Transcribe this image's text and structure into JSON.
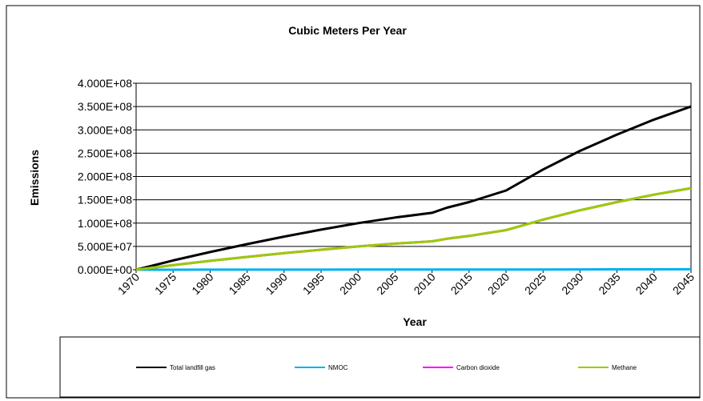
{
  "chart_data": {
    "type": "line",
    "title": "Cubic Meters Per Year",
    "xlabel": "Year",
    "ylabel": "Emissions",
    "ylim": [
      0,
      400000000
    ],
    "xlim": [
      1970,
      2045
    ],
    "y_ticks": [
      "0.000E+00",
      "5.000E+07",
      "1.000E+08",
      "1.500E+08",
      "2.000E+08",
      "2.500E+08",
      "3.000E+08",
      "3.500E+08",
      "4.000E+08"
    ],
    "x_ticks": [
      "1970",
      "1975",
      "1980",
      "1985",
      "1990",
      "1995",
      "2000",
      "2005",
      "2010",
      "2015",
      "2020",
      "2025",
      "2030",
      "2035",
      "2040",
      "2045"
    ],
    "grid": "horizontal",
    "legend": "bottom",
    "x": [
      1970,
      1975,
      1980,
      1985,
      1990,
      1995,
      2000,
      2005,
      2010,
      2012,
      2015,
      2020,
      2025,
      2030,
      2035,
      2040,
      2045
    ],
    "series": [
      {
        "name": "Total landfill gas",
        "color": "#000000",
        "values": [
          0,
          20000000,
          38000000,
          55000000,
          71000000,
          86000000,
          100000000,
          112000000,
          122000000,
          133000000,
          145000000,
          170000000,
          215000000,
          255000000,
          290000000,
          322000000,
          350000000
        ]
      },
      {
        "name": "NMOC",
        "color": "#00b0f0",
        "values": [
          0,
          50000,
          100000,
          150000,
          200000,
          250000,
          290000,
          320000,
          350000,
          380000,
          410000,
          480000,
          600000,
          710000,
          800000,
          890000,
          970000
        ]
      },
      {
        "name": "Carbon dioxide",
        "color": "#ff00ff",
        "values": [
          0,
          10000000,
          19000000,
          27500000,
          35500000,
          43000000,
          50000000,
          56000000,
          61000000,
          66500000,
          72500000,
          85000000,
          107500000,
          127500000,
          145000000,
          161000000,
          175000000
        ]
      },
      {
        "name": "Methane",
        "color": "#99cc00",
        "values": [
          0,
          10000000,
          19000000,
          27500000,
          35500000,
          43000000,
          50000000,
          56000000,
          61000000,
          66500000,
          72500000,
          85000000,
          107500000,
          127500000,
          145000000,
          161000000,
          175000000
        ]
      }
    ]
  }
}
